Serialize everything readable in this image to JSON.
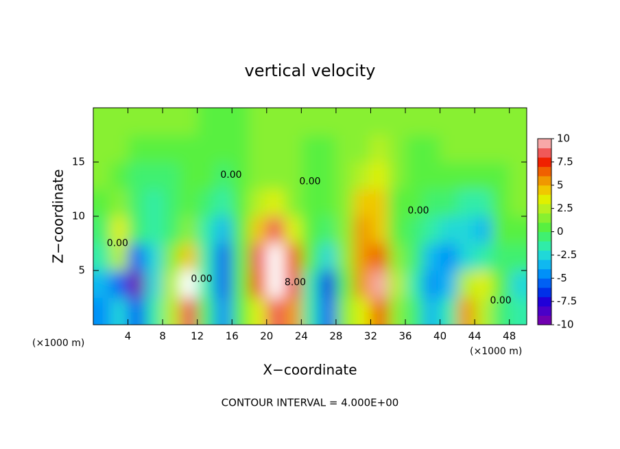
{
  "chart_data": {
    "type": "contour",
    "title": "vertical velocity",
    "x_label": "X−coordinate",
    "y_label": "Z−coordinate",
    "x_unit_left": "(×1000 m)",
    "x_unit_right": "(×1000 m)",
    "footer": "CONTOUR INTERVAL = 4.000E+00",
    "xlim": [
      0,
      50
    ],
    "ylim": [
      0,
      20
    ],
    "xticks": [
      4,
      8,
      12,
      16,
      20,
      24,
      28,
      32,
      36,
      40,
      44,
      48
    ],
    "yticks": [
      5,
      10,
      15
    ],
    "clim": [
      -10,
      10
    ],
    "cticks": [
      10,
      7.5,
      5,
      2.5,
      0,
      -2.5,
      -5,
      -7.5,
      -10
    ],
    "colors": [
      "#7000b0",
      "#4a00c8",
      "#2000d8",
      "#0030e8",
      "#0060f4",
      "#0090f8",
      "#10b8f0",
      "#20d8d8",
      "#30eca8",
      "#40f070",
      "#58f040",
      "#88f030",
      "#b8f020",
      "#e0f000",
      "#f0c800",
      "#f09800",
      "#f06000",
      "#f02000",
      "#f05858",
      "#f8a8a8"
    ],
    "over_color": "#ffffff",
    "x": [
      1,
      3,
      5,
      7,
      9,
      11,
      13,
      15,
      17,
      19,
      21,
      23,
      25,
      27,
      29,
      31,
      33,
      35,
      37,
      39,
      41,
      43,
      45,
      47,
      49
    ],
    "y": [
      1.25,
      3.75,
      6.25,
      8.75,
      11.25,
      13.75,
      16.25,
      18.75
    ],
    "z": [
      [
        -5,
        -3,
        -6,
        -2,
        2,
        8,
        -1,
        -5,
        0,
        3,
        8,
        5,
        -2,
        -6,
        1,
        3,
        6,
        1,
        -1,
        -4,
        -2,
        5,
        2,
        -1,
        -2
      ],
      [
        -4,
        -6,
        -10,
        -3,
        2,
        10.5,
        -2,
        -6,
        0,
        6,
        10.5,
        8,
        -2,
        -7,
        0,
        5,
        9,
        2,
        -2,
        -5,
        -4,
        2,
        3,
        0,
        -3
      ],
      [
        -2,
        2,
        -6,
        -3,
        1,
        4,
        -2,
        -6,
        0,
        8,
        12,
        6,
        0,
        -3,
        1,
        5,
        6,
        1,
        -1,
        -4,
        -5,
        -3,
        -2,
        -1,
        -1
      ],
      [
        -1,
        3,
        -1,
        -2,
        -1,
        1,
        -2,
        -4,
        0,
        4,
        8,
        3,
        0,
        -1,
        1,
        5,
        4,
        0,
        -1,
        -2,
        -3,
        -3,
        -4,
        0,
        0
      ],
      [
        0,
        1,
        -1,
        -2,
        -1,
        0,
        -1,
        -2,
        0,
        2,
        3,
        1,
        0,
        0,
        1,
        4,
        4,
        0,
        0,
        -1,
        -1,
        -2,
        -2,
        0,
        1
      ],
      [
        1,
        0,
        -1,
        -1,
        -1,
        0,
        0,
        -1,
        0,
        1,
        1,
        1,
        0,
        0,
        1,
        2,
        3,
        1,
        0,
        0,
        0,
        0,
        0,
        0,
        1
      ],
      [
        1,
        1,
        0,
        0,
        0,
        0,
        0,
        0,
        0,
        1,
        1,
        1,
        0,
        0,
        1,
        1,
        2,
        1,
        0,
        0,
        1,
        1,
        1,
        1,
        1
      ],
      [
        1,
        1,
        1,
        1,
        1,
        1,
        0,
        0,
        0,
        1,
        1,
        1,
        1,
        1,
        1,
        1,
        1,
        1,
        1,
        1,
        1,
        1,
        1,
        1,
        1
      ]
    ],
    "contour_labels": [
      {
        "label": "0.00",
        "x": 15.9,
        "y": 13.8
      },
      {
        "label": "0.00",
        "x": 25,
        "y": 13.2
      },
      {
        "label": "0.00",
        "x": 37.5,
        "y": 10.5
      },
      {
        "label": "0.00",
        "x": 12.5,
        "y": 4.2
      },
      {
        "label": "8.00",
        "x": 23.3,
        "y": 3.9
      },
      {
        "label": "0.00",
        "x": 47,
        "y": 2.2
      },
      {
        "label": "0.00",
        "x": 2.8,
        "y": 7.5
      }
    ]
  }
}
